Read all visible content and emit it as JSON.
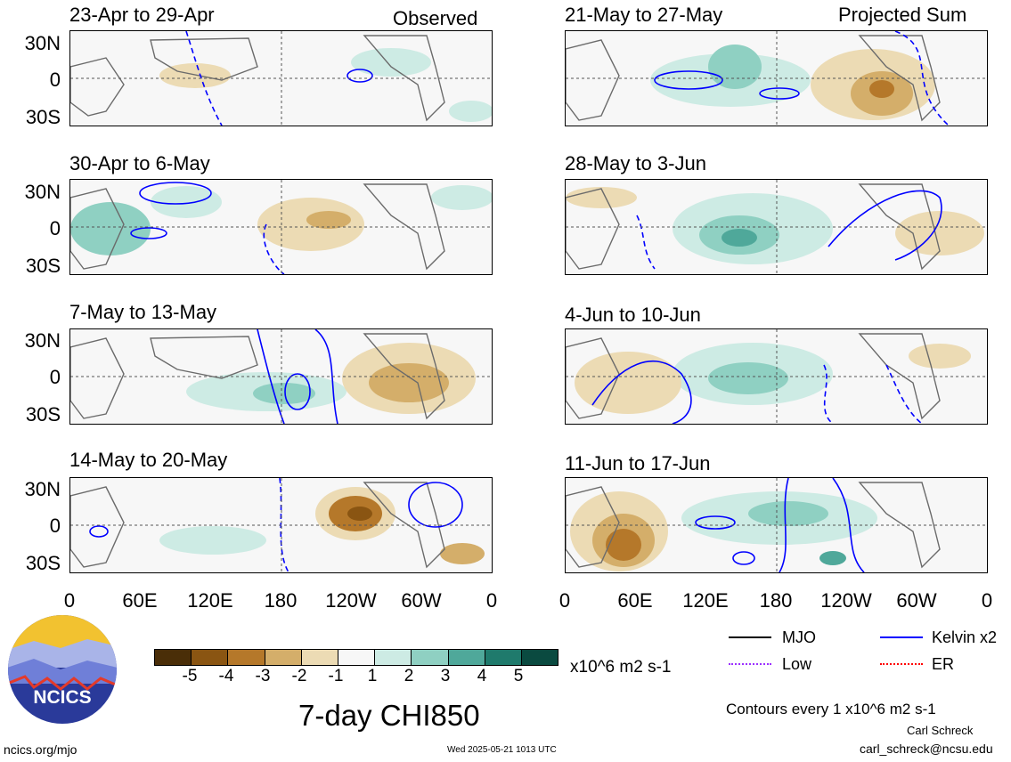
{
  "header": {
    "observed_label": "Observed",
    "projected_label": "Projected Sum"
  },
  "panels": [
    {
      "title": "23-Apr to 29-Apr"
    },
    {
      "title": "30-Apr to 6-May"
    },
    {
      "title": "7-May to 13-May"
    },
    {
      "title": "14-May to 20-May"
    },
    {
      "title": "21-May to 27-May"
    },
    {
      "title": "28-May to 3-Jun"
    },
    {
      "title": "4-Jun to 10-Jun"
    },
    {
      "title": "11-Jun to 17-Jun"
    }
  ],
  "axes": {
    "lat_labels": [
      "30N",
      "0",
      "30S"
    ],
    "lon_labels": [
      "0",
      "60E",
      "120E",
      "180",
      "120W",
      "60W",
      "0"
    ]
  },
  "colorbar": {
    "labels": [
      "-5",
      "-4",
      "-3",
      "-2",
      "-1",
      "1",
      "2",
      "3",
      "4",
      "5"
    ],
    "colors": [
      "#4a2e08",
      "#8a5512",
      "#b5782a",
      "#d4ae6a",
      "#ecdbb4",
      "#f7f7f7",
      "#cdebe4",
      "#8fd0c2",
      "#4fa89a",
      "#1f7a6c",
      "#0a4a40"
    ],
    "units": "x10^6 m2 s-1"
  },
  "legend": {
    "items": [
      {
        "label": "MJO",
        "color": "#000000"
      },
      {
        "label": "Kelvin x2",
        "color": "#0000ff"
      },
      {
        "label": "Low",
        "color": "#9b30ff"
      },
      {
        "label": "ER",
        "color": "#ff0000"
      }
    ],
    "contours_note": "Contours every 1 x10^6 m2 s-1"
  },
  "main_title": "7-day CHI850",
  "logo": {
    "text": "NCICS"
  },
  "footer": {
    "left_url": "ncics.org/mjo",
    "timestamp": "Wed 2025-05-21 1013 UTC",
    "author": "Carl Schreck",
    "email": "carl_schreck@ncsu.edu"
  }
}
